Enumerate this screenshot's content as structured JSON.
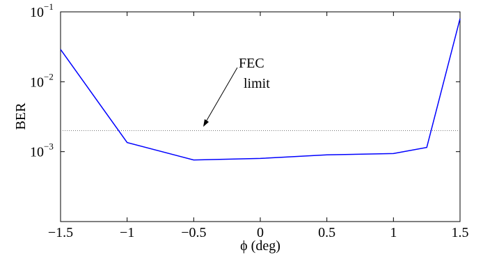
{
  "chart_data": {
    "type": "line",
    "title": "",
    "xlabel": "ϕ (deg)",
    "ylabel": "BER",
    "xlim": [
      -1.5,
      1.5
    ],
    "ylim": [
      0.0001,
      0.1
    ],
    "yscale": "log",
    "grid": false,
    "x_ticks": [
      -1.5,
      -1,
      -0.5,
      0,
      0.5,
      1,
      1.5
    ],
    "x_tick_labels": [
      "−1.5",
      "−1",
      "−0.5",
      "0",
      "0.5",
      "1",
      "1.5"
    ],
    "y_ticks": [
      {
        "value": 0.001,
        "base": "10",
        "exp": "−3"
      },
      {
        "value": 0.01,
        "base": "10",
        "exp": "−2"
      },
      {
        "value": 0.1,
        "base": "10",
        "exp": "−1"
      }
    ],
    "series": [
      {
        "color": "#0000ff",
        "x": [
          -1.5,
          -1.0,
          -0.5,
          0.0,
          0.5,
          1.0,
          1.25,
          1.5
        ],
        "y": [
          0.029,
          0.00135,
          0.00076,
          0.0008,
          0.0009,
          0.00094,
          0.00115,
          0.08
        ]
      }
    ],
    "reference_line": {
      "y": 0.002,
      "style": "dotted",
      "color": "#777777"
    },
    "annotation": {
      "line1": "FEC",
      "line2": "limit"
    }
  }
}
